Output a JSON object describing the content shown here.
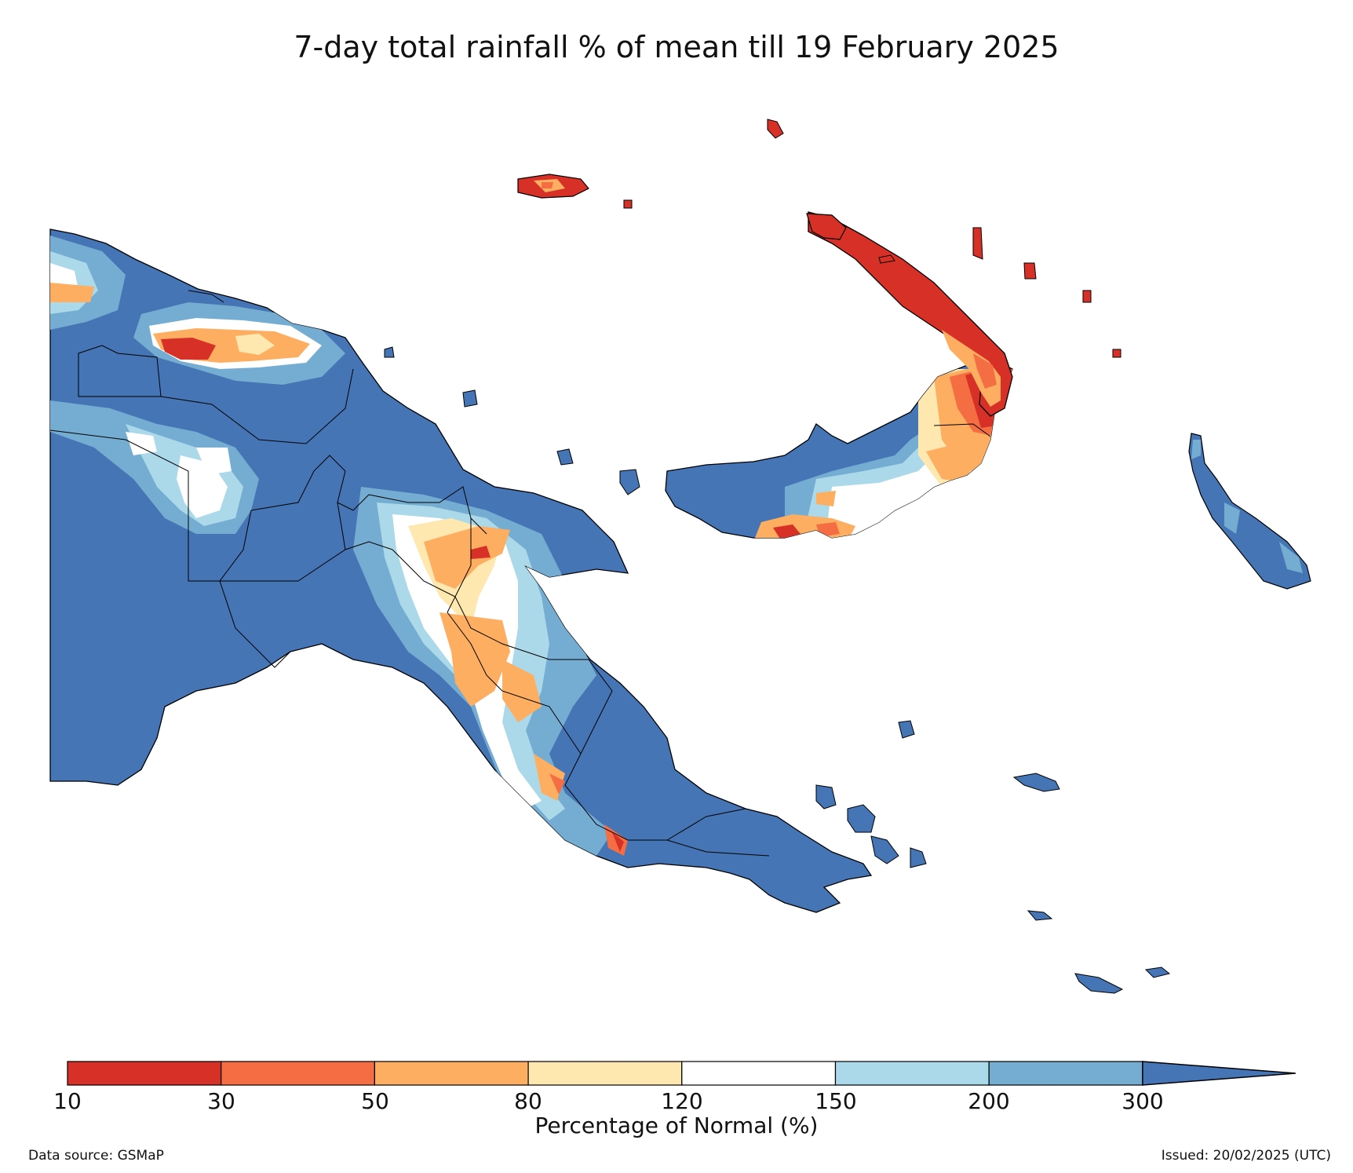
{
  "title": "7-day total rainfall % of mean till 19 February 2025",
  "colorbar": {
    "label": "Percentage of Normal (%)",
    "ticks": [
      "10",
      "30",
      "50",
      "80",
      "120",
      "150",
      "200",
      "300"
    ],
    "bins": [
      {
        "range": "10-30",
        "color": "#d73027"
      },
      {
        "range": "30-50",
        "color": "#f46d43"
      },
      {
        "range": "50-80",
        "color": "#fdae61"
      },
      {
        "range": "80-120",
        "color": "#fee8b0"
      },
      {
        "range": "120-150",
        "color": "#ffffff"
      },
      {
        "range": "150-200",
        "color": "#abd9e9"
      },
      {
        "range": "200-300",
        "color": "#74add1"
      },
      {
        "range": ">300",
        "color": "#4575b4"
      }
    ]
  },
  "footer": {
    "source": "Data source: GSMaP",
    "issued": "Issued: 20/02/2025 (UTC)"
  },
  "colors": {
    "very_wet": "#4575b4",
    "wet": "#74add1",
    "moderately_wet": "#abd9e9",
    "normal": "#ffffff",
    "near_normal": "#fee8b0",
    "dry": "#fdae61",
    "very_dry": "#f46d43",
    "extremely_dry": "#d73027"
  }
}
